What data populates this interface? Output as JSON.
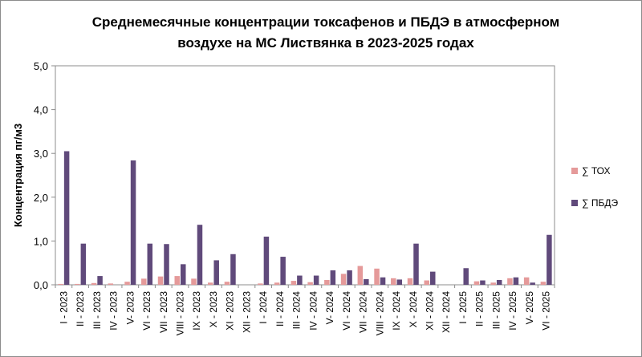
{
  "chart_data": {
    "type": "bar",
    "title": "Среднемесячные концентрации токсафенов и ПБДЭ в атмосферном воздухе на МС Листвянка  в 2023-2025 годах",
    "title_lines": [
      "Среднемесячные концентрации токсафенов и ПБДЭ в атмосферном",
      "воздухе на МС Листвянка  в 2023-2025 годах"
    ],
    "xlabel": "",
    "ylabel": "Концентрация пг/м3",
    "ylim": [
      0,
      5
    ],
    "yticks": [
      "0,0",
      "1,0",
      "2,0",
      "3,0",
      "4,0",
      "5,0"
    ],
    "grid": false,
    "legend_position": "right",
    "categories": [
      "I - 2023",
      "II - 2023",
      "III - 2023",
      "IV - 2023",
      "V- 2023",
      "VI - 2023",
      "VII - 2023",
      "VIII - 2023",
      "IX - 2023",
      "X - 2023",
      "XI - 2023",
      "XII - 2023",
      "I - 2024",
      "II - 2024",
      "III - 2024",
      "IV - 2024",
      "V- 2024",
      "VI - 2024",
      "VII - 2024",
      "VIII - 2024",
      "IX - 2024",
      "X - 2024",
      "XI - 2024",
      "XII - 2024",
      "I - 2025",
      "II - 2025",
      "III - 2025",
      "IV - 2025",
      "V- 2025",
      "VI - 2025"
    ],
    "series": [
      {
        "name": "∑ ТОХ",
        "color": "#e59a9a",
        "values": [
          0.02,
          0.02,
          0.04,
          0.03,
          0.07,
          0.14,
          0.19,
          0.2,
          0.14,
          0.05,
          0.07,
          0.0,
          0.03,
          0.05,
          0.09,
          0.06,
          0.11,
          0.25,
          0.43,
          0.37,
          0.15,
          0.15,
          0.1,
          0.0,
          0.0,
          0.08,
          0.05,
          0.15,
          0.17,
          0.07
        ]
      },
      {
        "name": "∑ ПБДЭ",
        "color": "#604a7b",
        "values": [
          3.05,
          0.94,
          0.2,
          0.0,
          2.84,
          0.94,
          0.93,
          0.47,
          1.37,
          0.56,
          0.7,
          0.0,
          1.1,
          0.64,
          0.21,
          0.21,
          0.33,
          0.33,
          0.13,
          0.17,
          0.12,
          0.94,
          0.3,
          0.0,
          0.38,
          0.1,
          0.11,
          0.17,
          0.05,
          1.14
        ]
      }
    ]
  }
}
